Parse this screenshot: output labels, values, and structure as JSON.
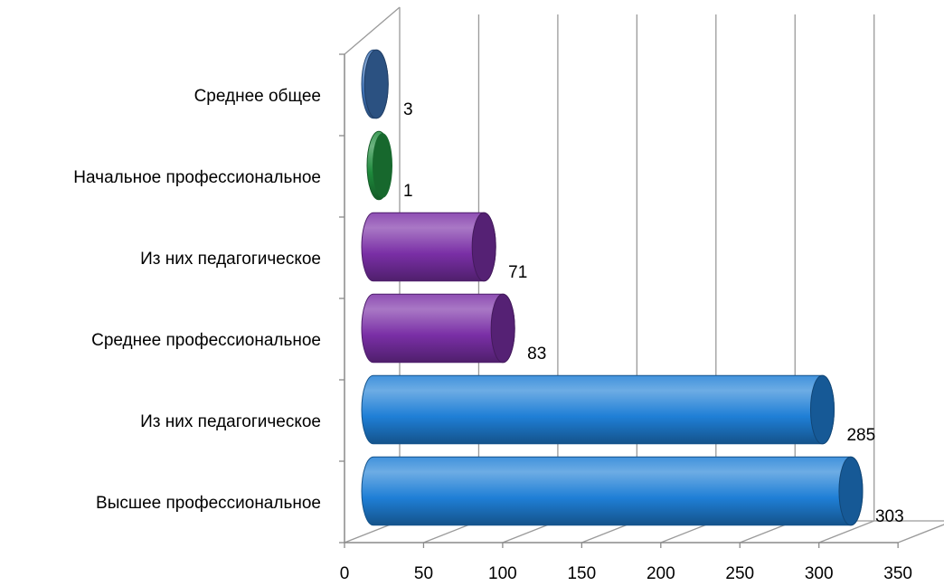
{
  "chart_data": {
    "type": "bar",
    "orientation": "horizontal",
    "style": "3d-cylinder",
    "categories": [
      "Высшее профессиональное",
      "Из них педагогическое",
      "Среднее профессиональное",
      "Из них педагогическое",
      "Начальное профессиональное",
      "Среднее общее"
    ],
    "values": [
      303,
      285,
      83,
      71,
      1,
      3
    ],
    "bar_colors": [
      "#1F7FD6",
      "#1F7FD6",
      "#7A2FA6",
      "#7A2FA6",
      "#1E8A3C",
      "#3E73B8"
    ],
    "xlim": [
      0,
      350
    ],
    "xticks": [
      0,
      50,
      100,
      150,
      200,
      250,
      300,
      350
    ],
    "grid": true,
    "legend": "none",
    "title": "",
    "xlabel": "",
    "ylabel": ""
  }
}
